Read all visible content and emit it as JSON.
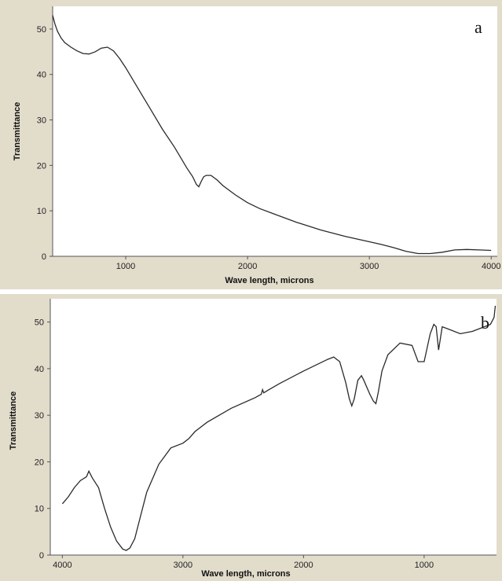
{
  "colors": {
    "frame": "#e2dccb",
    "plot_bg": "#ffffff",
    "line": "#2a2a2a",
    "axis": "#555555"
  },
  "chart_data": [
    {
      "type": "line",
      "panel_label": "a",
      "xlabel": "Wave length, microns",
      "ylabel": "Transmittance",
      "xlim": [
        400,
        4050
      ],
      "ylim": [
        0,
        55
      ],
      "x_ticks": [
        1000,
        2000,
        3000,
        4000
      ],
      "y_ticks": [
        0,
        10,
        20,
        30,
        40,
        50
      ],
      "grid": false,
      "x": [
        400,
        420,
        440,
        470,
        500,
        550,
        600,
        650,
        700,
        750,
        800,
        850,
        900,
        950,
        1000,
        1100,
        1200,
        1300,
        1400,
        1500,
        1550,
        1580,
        1600,
        1620,
        1640,
        1660,
        1700,
        1750,
        1800,
        1900,
        2000,
        2100,
        2200,
        2400,
        2600,
        2800,
        3000,
        3100,
        3200,
        3300,
        3400,
        3500,
        3600,
        3700,
        3800,
        3900,
        4000
      ],
      "y": [
        53,
        51,
        49.5,
        48,
        47,
        46,
        45.2,
        44.6,
        44.5,
        45,
        45.8,
        46,
        45.2,
        43.5,
        41.5,
        37,
        32.5,
        28,
        24,
        19.5,
        17.5,
        15.8,
        15.3,
        16.5,
        17.5,
        17.8,
        17.8,
        16.8,
        15.5,
        13.5,
        11.8,
        10.5,
        9.5,
        7.5,
        5.8,
        4.4,
        3.2,
        2.6,
        1.9,
        1.1,
        0.6,
        0.6,
        0.9,
        1.4,
        1.5,
        1.4,
        1.3
      ]
    },
    {
      "type": "line",
      "panel_label": "b",
      "xlabel": "Wave length, microns",
      "ylabel": "Transmittance",
      "xlim": [
        4100,
        400
      ],
      "ylim": [
        0,
        55
      ],
      "x_ticks": [
        4000,
        3000,
        2000,
        1000
      ],
      "y_ticks": [
        0,
        10,
        20,
        30,
        40,
        50
      ],
      "grid": false,
      "x": [
        4000,
        3950,
        3900,
        3850,
        3800,
        3780,
        3750,
        3700,
        3650,
        3600,
        3550,
        3500,
        3470,
        3440,
        3400,
        3350,
        3300,
        3200,
        3100,
        3000,
        2950,
        2900,
        2800,
        2600,
        2400,
        2350,
        2340,
        2330,
        2300,
        2200,
        2000,
        1800,
        1750,
        1700,
        1650,
        1620,
        1600,
        1580,
        1550,
        1520,
        1500,
        1450,
        1420,
        1400,
        1380,
        1350,
        1300,
        1200,
        1100,
        1050,
        1000,
        950,
        920,
        900,
        880,
        850,
        800,
        700,
        600,
        500,
        450,
        420,
        410
      ],
      "y": [
        11,
        12.5,
        14.5,
        16,
        16.8,
        18,
        16.5,
        14.5,
        10,
        6,
        3,
        1.3,
        1,
        1.5,
        3.5,
        8.5,
        13.5,
        19.5,
        23,
        24,
        25,
        26.5,
        28.5,
        31.5,
        33.8,
        34.5,
        35.5,
        34.8,
        35.3,
        36.8,
        39.5,
        42,
        42.5,
        41.5,
        37,
        33.5,
        32,
        33.5,
        37.5,
        38.5,
        37.5,
        34.5,
        33,
        32.5,
        35,
        39.5,
        43,
        45.5,
        45,
        41.5,
        41.5,
        47.5,
        49.5,
        49,
        44,
        49,
        48.5,
        47.5,
        48,
        49,
        49.5,
        51,
        53.5
      ]
    }
  ]
}
